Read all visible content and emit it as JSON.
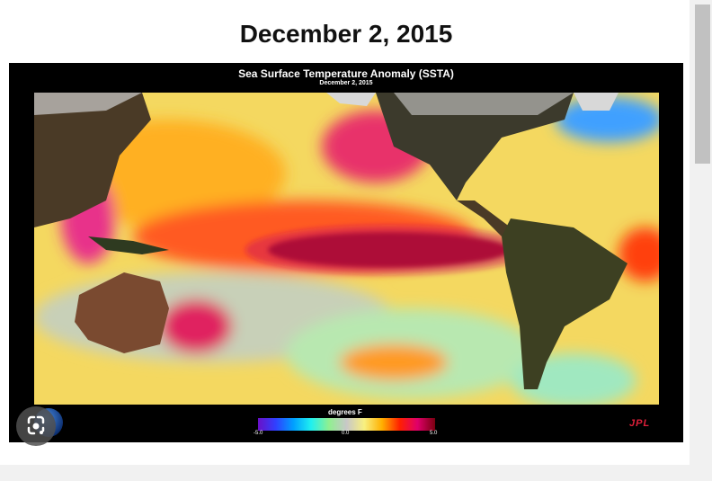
{
  "headline": "December 2, 2015",
  "figure": {
    "title": "Sea Surface Temperature Anomaly (SSTA)",
    "subtitle": "December 2, 2015",
    "colorbar": {
      "label": "degrees F",
      "min_label": "-5.0",
      "mid_label": "0.0",
      "max_label": "5.0",
      "colors": [
        "#6a10c8",
        "#3040ff",
        "#00a0ff",
        "#20f0f0",
        "#90f090",
        "#c8c8c8",
        "#f8f080",
        "#ffb000",
        "#ff2000",
        "#e0006a",
        "#7a0010"
      ]
    },
    "logo_text": "JPL"
  },
  "icons": {
    "lens": "google-lens-icon",
    "badge": "globe-logo-icon"
  }
}
